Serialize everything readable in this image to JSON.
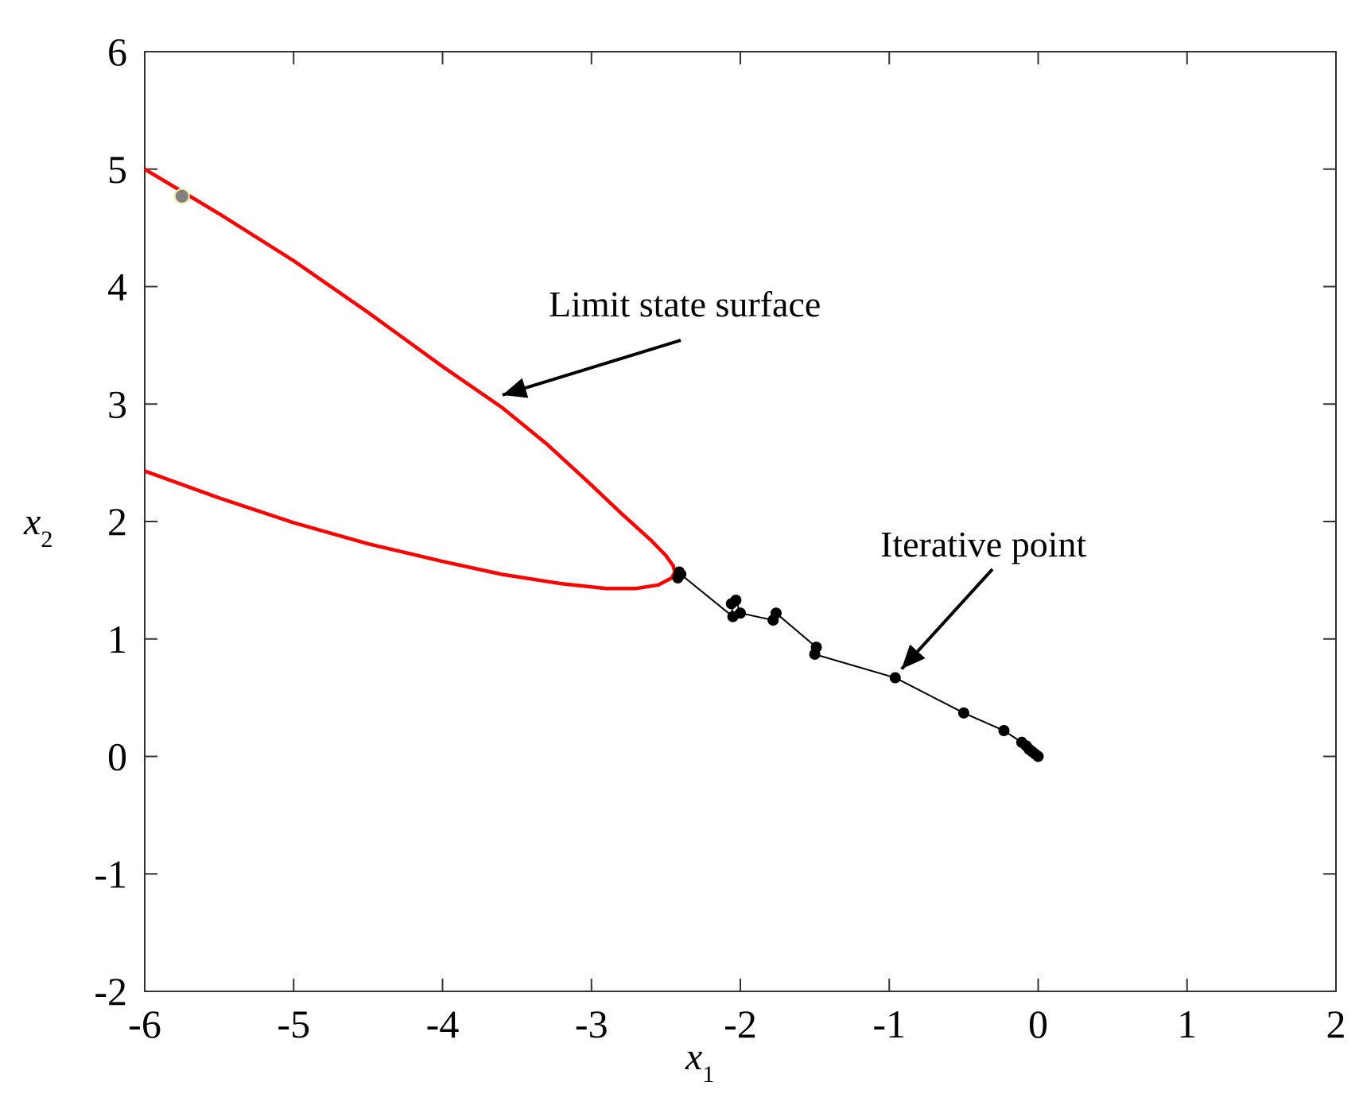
{
  "chart_data": {
    "type": "line",
    "xlabel": {
      "base": "x",
      "sub": "1"
    },
    "ylabel": {
      "base": "x",
      "sub": "2"
    },
    "xlim": [
      -6,
      2
    ],
    "ylim": [
      -2,
      6
    ],
    "xticks": [
      "-6",
      "-5",
      "-4",
      "-3",
      "-2",
      "-1",
      "0",
      "1",
      "2"
    ],
    "yticks": [
      "-2",
      "-1",
      "0",
      "1",
      "2",
      "3",
      "4",
      "5",
      "6"
    ],
    "grid": false,
    "colors": {
      "limit_state": "#ff0000",
      "iteration": "#000000",
      "design_point": "#808080"
    },
    "series": [
      {
        "type": "line",
        "points": [
          [
            -6.0,
            5.0
          ],
          [
            -5.5,
            4.62
          ],
          [
            -5.0,
            4.22
          ],
          [
            -4.5,
            3.78
          ],
          [
            -4.0,
            3.32
          ],
          [
            -3.6,
            2.97
          ],
          [
            -3.3,
            2.66
          ],
          [
            -3.0,
            2.31
          ],
          [
            -2.8,
            2.07
          ],
          [
            -2.6,
            1.84
          ],
          [
            -2.5,
            1.71
          ],
          [
            -2.45,
            1.62
          ],
          [
            -2.44,
            1.57
          ],
          [
            -2.46,
            1.52
          ],
          [
            -2.55,
            1.46
          ],
          [
            -2.7,
            1.43
          ],
          [
            -2.9,
            1.43
          ],
          [
            -3.2,
            1.47
          ],
          [
            -3.6,
            1.55
          ],
          [
            -4.0,
            1.66
          ],
          [
            -4.5,
            1.81
          ],
          [
            -5.0,
            1.99
          ],
          [
            -5.5,
            2.2
          ],
          [
            -6.0,
            2.43
          ]
        ]
      },
      {
        "type": "line-markers",
        "points": [
          [
            0.0,
            0.0
          ],
          [
            -0.02,
            0.02
          ],
          [
            -0.04,
            0.04
          ],
          [
            -0.06,
            0.06
          ],
          [
            -0.08,
            0.09
          ],
          [
            -0.11,
            0.12
          ],
          [
            -0.23,
            0.22
          ],
          [
            -0.5,
            0.37
          ],
          [
            -0.96,
            0.67
          ],
          [
            -1.5,
            0.87
          ],
          [
            -1.49,
            0.93
          ],
          [
            -1.76,
            1.22
          ],
          [
            -1.78,
            1.16
          ],
          [
            -2.0,
            1.22
          ],
          [
            -2.03,
            1.33
          ],
          [
            -2.06,
            1.3
          ],
          [
            -2.05,
            1.19
          ],
          [
            -2.4,
            1.55
          ],
          [
            -2.41,
            1.57
          ],
          [
            -2.42,
            1.52
          ]
        ]
      },
      {
        "type": "scatter",
        "points": [
          [
            -5.75,
            4.77
          ]
        ]
      }
    ],
    "annotations": [
      {
        "text": "Limit state surface",
        "point": [
          -3.63,
          3.05
        ]
      },
      {
        "text": "Iterative point",
        "point": [
          -0.96,
          0.69
        ]
      }
    ]
  }
}
